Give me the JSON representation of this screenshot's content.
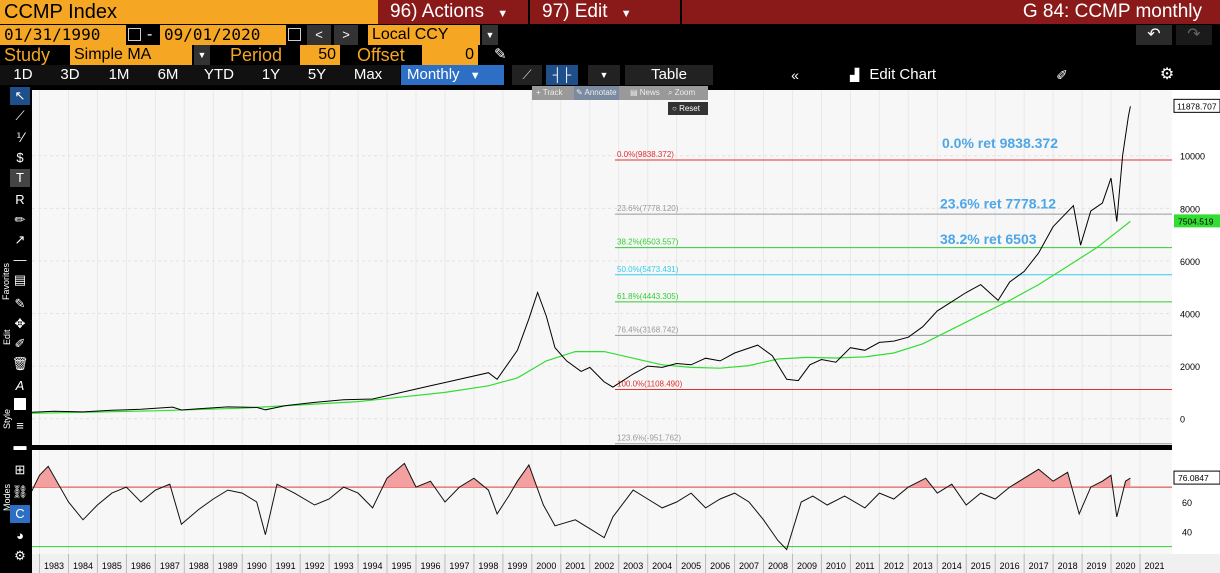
{
  "header": {
    "security": "CCMP Index",
    "actions_label": "96) Actions",
    "edit_label": "97) Edit",
    "chart_title": "G 84: CCMP monthly"
  },
  "range": {
    "start": "01/31/1990",
    "dash": "-",
    "end": "09/01/2020",
    "currency": "Local CCY"
  },
  "study": {
    "label": "Study",
    "name": "Simple MA",
    "period_label": "Period",
    "period": "50",
    "offset_label": "Offset",
    "offset": "0"
  },
  "toolbar": {
    "periods": [
      "1D",
      "3D",
      "1M",
      "6M",
      "YTD",
      "1Y",
      "5Y",
      "Max"
    ],
    "frequency": "Monthly",
    "table_label": "Table",
    "edit_chart_label": "Edit Chart"
  },
  "mini_toolbar": {
    "track": "Track",
    "annotate": "Annotate",
    "news": "News",
    "zoom": "Zoom",
    "reset": "Reset"
  },
  "sidebar": {
    "favorites": "Favorites",
    "edit": "Edit",
    "style": "Style",
    "modes": "Modes"
  },
  "colors": {
    "orange": "#f5a623",
    "menu_red": "#8a1a1a",
    "price_line": "#000000",
    "ma_line": "#33dd33",
    "fib_red": "#e03030",
    "fib_green": "#33cc33",
    "fib_cyan": "#33ccee",
    "fib_grey": "#999999",
    "annot_blue": "#4da6e8"
  },
  "chart_data": {
    "type": "line",
    "x_label_years": [
      "1983",
      "1984",
      "1985",
      "1986",
      "1987",
      "1988",
      "1989",
      "1990",
      "1991",
      "1992",
      "1993",
      "1994",
      "1995",
      "1996",
      "1997",
      "1998",
      "1999",
      "2000",
      "2001",
      "2002",
      "2003",
      "2004",
      "2005",
      "2006",
      "2007",
      "2008",
      "2009",
      "2010",
      "2011",
      "2012",
      "2013",
      "2014",
      "2015",
      "2016",
      "2017",
      "2018",
      "2019",
      "2020",
      "2021"
    ],
    "y_ticks": [
      0,
      2000,
      4000,
      6000,
      8000,
      10000
    ],
    "ylim": [
      -1000,
      12500
    ],
    "price_series": {
      "x": [
        1982.6,
        1983.5,
        1984.5,
        1985.5,
        1986.5,
        1987.6,
        1987.9,
        1988.5,
        1989.5,
        1990.5,
        1990.8,
        1991.5,
        1992.5,
        1993.5,
        1994.5,
        1995.5,
        1996.5,
        1997.5,
        1998.5,
        1998.8,
        1999.5,
        1999.9,
        2000.2,
        2000.5,
        2000.8,
        2001.2,
        2001.7,
        2002.0,
        2002.5,
        2002.8,
        2003.5,
        2004.0,
        2004.5,
        2005.0,
        2005.5,
        2006.0,
        2006.5,
        2007.0,
        2007.8,
        2008.3,
        2008.8,
        2009.2,
        2009.6,
        2010.0,
        2010.5,
        2011.0,
        2011.5,
        2012.0,
        2012.5,
        2013.0,
        2013.5,
        2014.0,
        2014.5,
        2015.0,
        2015.5,
        2016.1,
        2016.5,
        2017.0,
        2017.5,
        2018.0,
        2018.7,
        2018.95,
        2019.3,
        2019.7,
        2020.0,
        2020.2,
        2020.4,
        2020.6,
        2020.67
      ],
      "values": [
        240,
        280,
        260,
        320,
        360,
        440,
        330,
        380,
        450,
        430,
        340,
        500,
        620,
        720,
        750,
        1000,
        1250,
        1500,
        1750,
        1500,
        2600,
        3800,
        4800,
        3900,
        2700,
        2200,
        1800,
        1950,
        1400,
        1200,
        1700,
        2000,
        1950,
        2100,
        2050,
        2300,
        2200,
        2500,
        2800,
        2400,
        1500,
        1450,
        2050,
        2250,
        2150,
        2700,
        2600,
        2900,
        2950,
        3100,
        3500,
        4100,
        4450,
        4800,
        5100,
        4500,
        5200,
        5600,
        6300,
        7300,
        8100,
        6600,
        7900,
        8200,
        9150,
        7500,
        10000,
        11500,
        11878.707
      ]
    },
    "ma_series": {
      "x": [
        1982.6,
        1987.0,
        1990.0,
        1994.0,
        1997.0,
        1998.5,
        1999.5,
        2000.5,
        2001.5,
        2002.5,
        2003.5,
        2004.5,
        2005.5,
        2006.5,
        2007.5,
        2008.5,
        2009.5,
        2010.5,
        2011.5,
        2012.5,
        2013.5,
        2014.5,
        2015.5,
        2016.5,
        2017.5,
        2018.5,
        2019.5,
        2020.67
      ],
      "values": [
        200,
        300,
        400,
        650,
        1000,
        1250,
        1550,
        2200,
        2550,
        2550,
        2300,
        2050,
        1950,
        1920,
        2020,
        2270,
        2330,
        2310,
        2350,
        2500,
        2850,
        3400,
        3950,
        4500,
        5100,
        5800,
        6500,
        7504.519
      ]
    },
    "last_price": "11878.707",
    "last_ma": "7504.519",
    "fibonacci": [
      {
        "label": "0.0%(9838.372)",
        "value": 9838.372,
        "color": "#e03030"
      },
      {
        "label": "23.6%(7778.120)",
        "value": 7778.12,
        "color": "#999999"
      },
      {
        "label": "38.2%(6503.557)",
        "value": 6503.557,
        "color": "#33cc33"
      },
      {
        "label": "50.0%(5473.431)",
        "value": 5473.431,
        "color": "#33ccee"
      },
      {
        "label": "61.8%(4443.305)",
        "value": 4443.305,
        "color": "#33cc33"
      },
      {
        "label": "76.4%(3168.742)",
        "value": 3168.742,
        "color": "#999999"
      },
      {
        "label": "100.0%(1108.490)",
        "value": 1108.49,
        "color": "#e03030"
      },
      {
        "label": "123.6%(-951.762)",
        "value": -951.762,
        "color": "#999999"
      }
    ],
    "annotations": [
      {
        "text": "0.0% ret 9838.372",
        "value": 10300
      },
      {
        "text": "23.6% ret 7778.12",
        "value": 8000
      },
      {
        "text": "38.2% ret 6503",
        "value": 6650
      }
    ],
    "rsi": {
      "y_ticks": [
        40,
        60
      ],
      "ylim": [
        25,
        95
      ],
      "upper": 70,
      "lower": 30,
      "last": "76.0847",
      "x": [
        1982.6,
        1983.0,
        1983.3,
        1984.0,
        1984.5,
        1985.0,
        1985.5,
        1986.0,
        1986.5,
        1987.0,
        1987.5,
        1987.9,
        1988.5,
        1989.0,
        1989.5,
        1990.0,
        1990.5,
        1990.8,
        1991.2,
        1991.8,
        1992.5,
        1993.0,
        1993.5,
        1994.0,
        1994.5,
        1995.0,
        1995.6,
        1996.0,
        1996.5,
        1997.0,
        1997.5,
        1998.0,
        1998.5,
        1998.8,
        1999.2,
        1999.5,
        1999.9,
        2000.4,
        2000.8,
        2001.5,
        2002.0,
        2002.5,
        2002.8,
        2003.5,
        2004.0,
        2004.5,
        2005.0,
        2005.5,
        2006.0,
        2006.5,
        2007.0,
        2007.5,
        2008.0,
        2008.5,
        2008.8,
        2009.3,
        2009.7,
        2010.2,
        2010.8,
        2011.5,
        2012.0,
        2012.5,
        2013.0,
        2013.6,
        2014.0,
        2014.5,
        2015.0,
        2015.5,
        2016.0,
        2016.5,
        2017.0,
        2017.5,
        2018.0,
        2018.5,
        2018.9,
        2019.3,
        2019.7,
        2020.0,
        2020.2,
        2020.5,
        2020.67
      ],
      "values": [
        62,
        78,
        84,
        60,
        48,
        58,
        66,
        70,
        60,
        68,
        72,
        45,
        55,
        62,
        68,
        66,
        60,
        38,
        72,
        66,
        58,
        62,
        70,
        66,
        56,
        76,
        86,
        70,
        74,
        60,
        70,
        76,
        68,
        52,
        64,
        74,
        85,
        58,
        44,
        48,
        42,
        36,
        50,
        68,
        62,
        56,
        60,
        66,
        56,
        62,
        66,
        60,
        48,
        34,
        28,
        60,
        64,
        58,
        64,
        56,
        66,
        62,
        70,
        76,
        66,
        72,
        58,
        66,
        62,
        70,
        76,
        82,
        74,
        80,
        52,
        70,
        74,
        78,
        50,
        74,
        76.0847
      ]
    }
  }
}
